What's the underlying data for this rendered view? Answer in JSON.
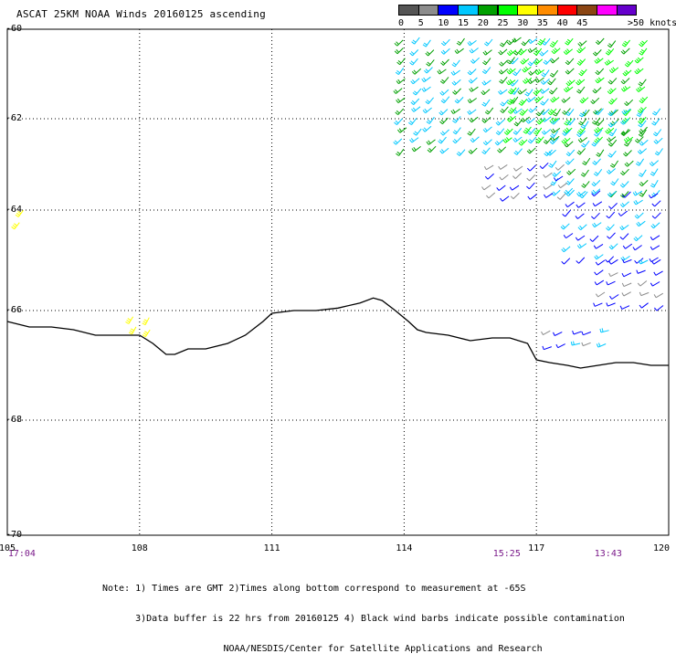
{
  "title": "ASCAT 25KM NOAA Winds 20160125 ascending",
  "legend": {
    "units": ">50 knots",
    "items": [
      {
        "label": "0",
        "color": "#555555"
      },
      {
        "label": "5",
        "color": "#8c8c8c"
      },
      {
        "label": "10",
        "color": "#0000ff"
      },
      {
        "label": "15",
        "color": "#00c8ff"
      },
      {
        "label": "20",
        "color": "#00a000"
      },
      {
        "label": "25",
        "color": "#00ff00"
      },
      {
        "label": "30",
        "color": "#ffff00"
      },
      {
        "label": "35",
        "color": "#ff8c00"
      },
      {
        "label": "40",
        "color": "#ff0000"
      },
      {
        "label": "45",
        "color": "#8b4513"
      },
      {
        "label": "",
        "color": "#ff00ff"
      },
      {
        "label": "",
        "color": "#6600cc"
      }
    ]
  },
  "axes": {
    "x_ticks": [
      "105",
      "108",
      "111",
      "114",
      "117",
      "120"
    ],
    "y_ticks": [
      "-60",
      "-62",
      "-64",
      "-66",
      "-68",
      "-70"
    ],
    "x_range": [
      105,
      120
    ],
    "y_range": [
      -70,
      -60
    ],
    "y_tick_values": [
      -60,
      -62,
      -64,
      -66,
      -68,
      -70
    ]
  },
  "times": [
    {
      "label": "17:04",
      "lon": 105.1
    },
    {
      "label": "15:25",
      "lon": 116.1
    },
    {
      "label": "13:43",
      "lon": 118.4
    }
  ],
  "notes": [
    "Note: 1) Times are GMT 2)Times along bottom correspond to measurement at -65S",
    "      3)Data buffer is 22 hrs from 20160125 4) Black wind barbs indicate possible contamination",
    "                      NOAA/NESDIS/Center for Satellite Applications and Research"
  ],
  "coastline": [
    [
      105.0,
      -66.2
    ],
    [
      105.5,
      -66.3
    ],
    [
      106.0,
      -66.3
    ],
    [
      106.5,
      -66.35
    ],
    [
      107.0,
      -66.45
    ],
    [
      107.6,
      -66.45
    ],
    [
      108.0,
      -66.45
    ],
    [
      108.3,
      -66.6
    ],
    [
      108.6,
      -66.8
    ],
    [
      108.8,
      -66.8
    ],
    [
      109.1,
      -66.7
    ],
    [
      109.5,
      -66.7
    ],
    [
      110.0,
      -66.6
    ],
    [
      110.4,
      -66.45
    ],
    [
      110.8,
      -66.2
    ],
    [
      111.0,
      -66.05
    ],
    [
      111.5,
      -66.0
    ],
    [
      112.0,
      -66.0
    ],
    [
      112.5,
      -65.95
    ],
    [
      113.0,
      -65.85
    ],
    [
      113.3,
      -65.75
    ],
    [
      113.5,
      -65.8
    ],
    [
      113.8,
      -66.0
    ],
    [
      114.1,
      -66.2
    ],
    [
      114.3,
      -66.35
    ],
    [
      114.5,
      -66.4
    ],
    [
      115.0,
      -66.45
    ],
    [
      115.5,
      -66.55
    ],
    [
      116.0,
      -66.5
    ],
    [
      116.4,
      -66.5
    ],
    [
      116.8,
      -66.6
    ],
    [
      117.0,
      -66.9
    ],
    [
      117.3,
      -66.95
    ],
    [
      117.7,
      -67.0
    ],
    [
      118.0,
      -67.05
    ],
    [
      118.4,
      -67.0
    ],
    [
      118.8,
      -66.95
    ],
    [
      119.2,
      -66.95
    ],
    [
      119.6,
      -67.0
    ],
    [
      120.0,
      -67.0
    ]
  ],
  "wind_regions": [
    {
      "lon": [
        114.0,
        117.5
      ],
      "lat": [
        -62.8,
        -60.0
      ],
      "speed_range": [
        15,
        22
      ],
      "dir_deg": 225
    },
    {
      "lon": [
        116.5,
        119.5
      ],
      "lat": [
        -62.5,
        -60.0
      ],
      "speed_range": [
        22,
        30
      ],
      "dir_deg": 225
    },
    {
      "lon": [
        117.5,
        120.0
      ],
      "lat": [
        -63.6,
        -61.8
      ],
      "speed_range": [
        15,
        22
      ],
      "dir_deg": 220
    },
    {
      "lon": [
        116.0,
        117.8
      ],
      "lat": [
        -63.8,
        -63.0
      ],
      "speed_range": [
        8,
        12
      ],
      "dir_deg": 230
    },
    {
      "lon": [
        117.8,
        120.0
      ],
      "lat": [
        -65.0,
        -63.6
      ],
      "speed_range": [
        10,
        18
      ],
      "dir_deg": 230
    },
    {
      "lon": [
        118.5,
        120.0
      ],
      "lat": [
        -66.0,
        -65.0
      ],
      "speed_range": [
        8,
        16
      ],
      "dir_deg": 240
    },
    {
      "lon": [
        117.3,
        118.8
      ],
      "lat": [
        -66.8,
        -66.4
      ],
      "speed_range": [
        9,
        16
      ],
      "dir_deg": 250
    },
    {
      "lon": [
        105.0,
        105.5
      ],
      "lat": [
        -64.3,
        -64.0
      ],
      "speed_range": [
        30,
        33
      ],
      "dir_deg": 210
    },
    {
      "lon": [
        107.9,
        108.3
      ],
      "lat": [
        -66.4,
        -66.1
      ],
      "speed_range": [
        30,
        33
      ],
      "dir_deg": 210
    }
  ]
}
